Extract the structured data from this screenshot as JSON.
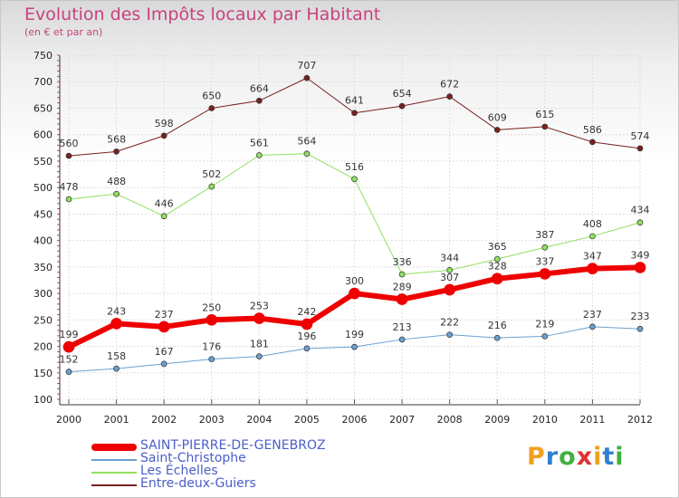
{
  "title": "Evolution des Impôts locaux par Habitant",
  "subtitle": "(en € et par an)",
  "logo": "Proxiti",
  "chart_data": {
    "type": "line",
    "x": [
      "2000",
      "2001",
      "2002",
      "2003",
      "2004",
      "2005",
      "2006",
      "2007",
      "2008",
      "2009",
      "2010",
      "2011",
      "2012"
    ],
    "ylim": [
      100,
      750
    ],
    "yticks": [
      100,
      150,
      200,
      250,
      300,
      350,
      400,
      450,
      500,
      550,
      600,
      650,
      700,
      750
    ],
    "grid": true,
    "legend_position": "bottom-left",
    "series": [
      {
        "name": "Entre-deux-Guiers",
        "color": "#7a2020",
        "width": 1,
        "values": [
          560,
          568,
          598,
          650,
          664,
          707,
          641,
          654,
          672,
          609,
          615,
          586,
          574
        ]
      },
      {
        "name": "Les Échelles",
        "color": "#8fe060",
        "width": 1,
        "values": [
          478,
          488,
          446,
          502,
          561,
          564,
          516,
          336,
          344,
          365,
          387,
          408,
          434
        ]
      },
      {
        "name": "Saint-Christophe",
        "color": "#6aa0d0",
        "width": 1,
        "values": [
          152,
          158,
          167,
          176,
          181,
          196,
          199,
          213,
          222,
          216,
          219,
          237,
          233
        ]
      },
      {
        "name": "SAINT-PIERRE-DE-GENEBROZ",
        "color": "#ee0000",
        "width": 6,
        "values": [
          199,
          243,
          237,
          250,
          253,
          242,
          300,
          289,
          307,
          328,
          337,
          347,
          349
        ]
      }
    ]
  }
}
